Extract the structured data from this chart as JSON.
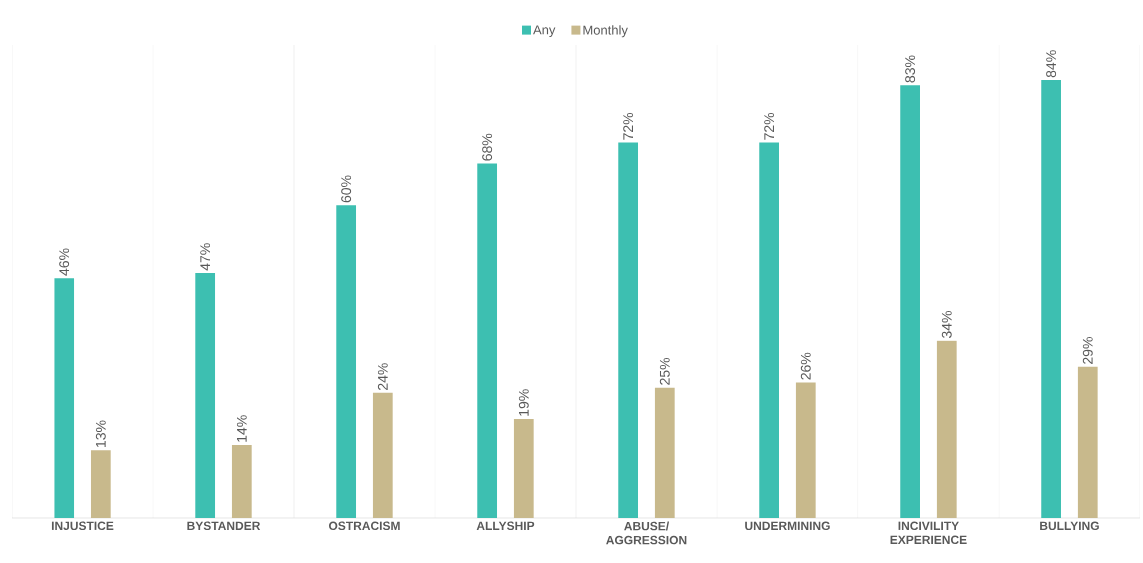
{
  "chart_data": {
    "type": "bar",
    "categories": [
      "INJUSTICE",
      "BYSTANDER",
      "OSTRACISM",
      "ALLYSHIP",
      "ABUSE/ AGGRESSION",
      "UNDERMINING",
      "INCIVILITY EXPERIENCE",
      "BULLYING"
    ],
    "series": [
      {
        "name": "Any",
        "color": "#3dbfb1",
        "values": [
          46,
          47,
          60,
          68,
          72,
          72,
          83,
          84
        ],
        "value_labels": [
          "46%",
          "47%",
          "60%",
          "68%",
          "72%",
          "72%",
          "83%",
          "84%"
        ]
      },
      {
        "name": "Monthly",
        "color": "#c8b98c",
        "values": [
          13,
          14,
          24,
          19,
          25,
          26,
          34,
          29
        ],
        "value_labels": [
          "13%",
          "14%",
          "24%",
          "19%",
          "25%",
          "26%",
          "34%",
          "29%"
        ]
      }
    ],
    "grid": "x",
    "legend": "top"
  }
}
